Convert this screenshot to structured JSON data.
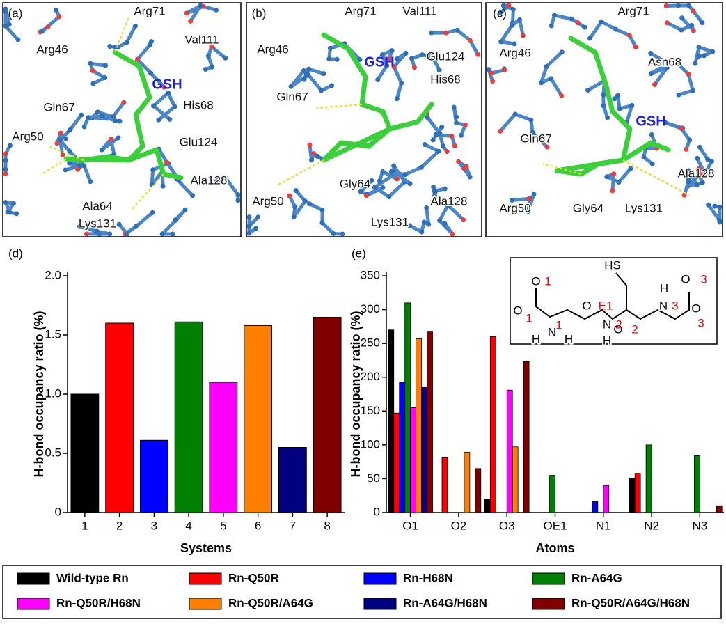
{
  "structure_panels": [
    {
      "label": "(a)",
      "ligand": "GSH",
      "residues": [
        "Arg71",
        "Val111",
        "Arg46",
        "Gln67",
        "His68",
        "Arg50",
        "Glu124",
        "Ala128",
        "Ala64",
        "Lys131"
      ]
    },
    {
      "label": "(b)",
      "ligand": "GSH",
      "residues": [
        "Arg71",
        "Val111",
        "Arg46",
        "Glu124",
        "His68",
        "Gln67",
        "Gly64",
        "Arg50",
        "Ala128",
        "Lys131"
      ]
    },
    {
      "label": "(c)",
      "ligand": "GSH",
      "residues": [
        "Arg71",
        "Arg46",
        "Asn68",
        "Gln67",
        "Ala128",
        "Arg50",
        "Gly64",
        "Lys131"
      ]
    }
  ],
  "chart_data": [
    {
      "type": "bar",
      "panel_label": "(d)",
      "x_label": "Systems",
      "y_label": "H-bond occupancy ratio (%)",
      "categories": [
        "1",
        "2",
        "3",
        "4",
        "5",
        "6",
        "7",
        "8"
      ],
      "values": [
        1.0,
        1.6,
        0.61,
        1.61,
        1.1,
        1.58,
        0.55,
        1.65
      ],
      "colors": [
        "#000000",
        "#ff0000",
        "#0000ff",
        "#008000",
        "#ff00ff",
        "#ff8000",
        "#000080",
        "#800000"
      ],
      "ylim": [
        0,
        2.0
      ],
      "yticks": [
        0,
        0.5,
        {
          "value": 1.0,
          "label": "1.0"
        },
        1.5,
        {
          "value": 2.0,
          "label": "2.0"
        }
      ]
    },
    {
      "type": "grouped_bar",
      "panel_label": "(e)",
      "x_label": "Atoms",
      "y_label": "H-bond occupancy ratio (%)",
      "categories": [
        "O1",
        "O2",
        "O3",
        "OE1",
        "N1",
        "N2",
        "N3"
      ],
      "series": [
        {
          "name": "Wild-type Rn",
          "color": "#000000",
          "values": [
            270,
            0,
            20,
            0,
            0,
            50,
            0
          ]
        },
        {
          "name": "Rn-Q50R",
          "color": "#ff0000",
          "values": [
            147,
            82,
            260,
            0,
            0,
            58,
            0
          ]
        },
        {
          "name": "Rn-H68N",
          "color": "#0000ff",
          "values": [
            192,
            0,
            0,
            0,
            16,
            0,
            0
          ]
        },
        {
          "name": "Rn-A64G",
          "color": "#008000",
          "values": [
            310,
            0,
            0,
            55,
            0,
            100,
            84
          ]
        },
        {
          "name": "Rn-Q50R/H68N",
          "color": "#ff00ff",
          "values": [
            155,
            0,
            181,
            0,
            40,
            0,
            0
          ]
        },
        {
          "name": "Rn-Q50R/A64G",
          "color": "#ff8000",
          "values": [
            257,
            89,
            97,
            0,
            0,
            0,
            0
          ]
        },
        {
          "name": "Rn-A64G/H68N",
          "color": "#000080",
          "values": [
            186,
            0,
            0,
            0,
            0,
            0,
            0
          ]
        },
        {
          "name": "Rn-Q50R/A64G/H68N",
          "color": "#800000",
          "values": [
            267,
            65,
            223,
            0,
            0,
            0,
            10
          ]
        }
      ],
      "ylim": [
        0,
        350
      ],
      "yticks": [
        0,
        50,
        100,
        150,
        200,
        250,
        300,
        350
      ],
      "inset": {
        "atoms": [
          "O",
          "O",
          "HS",
          "O",
          "N",
          "H",
          "H",
          "N",
          "O",
          "O",
          "N",
          "H",
          "H",
          "O"
        ],
        "numbers": [
          "1",
          "1",
          "E1",
          "2",
          "3",
          "3",
          "3",
          "1",
          "2"
        ],
        "number_color": "#ff0000"
      }
    }
  ]
}
